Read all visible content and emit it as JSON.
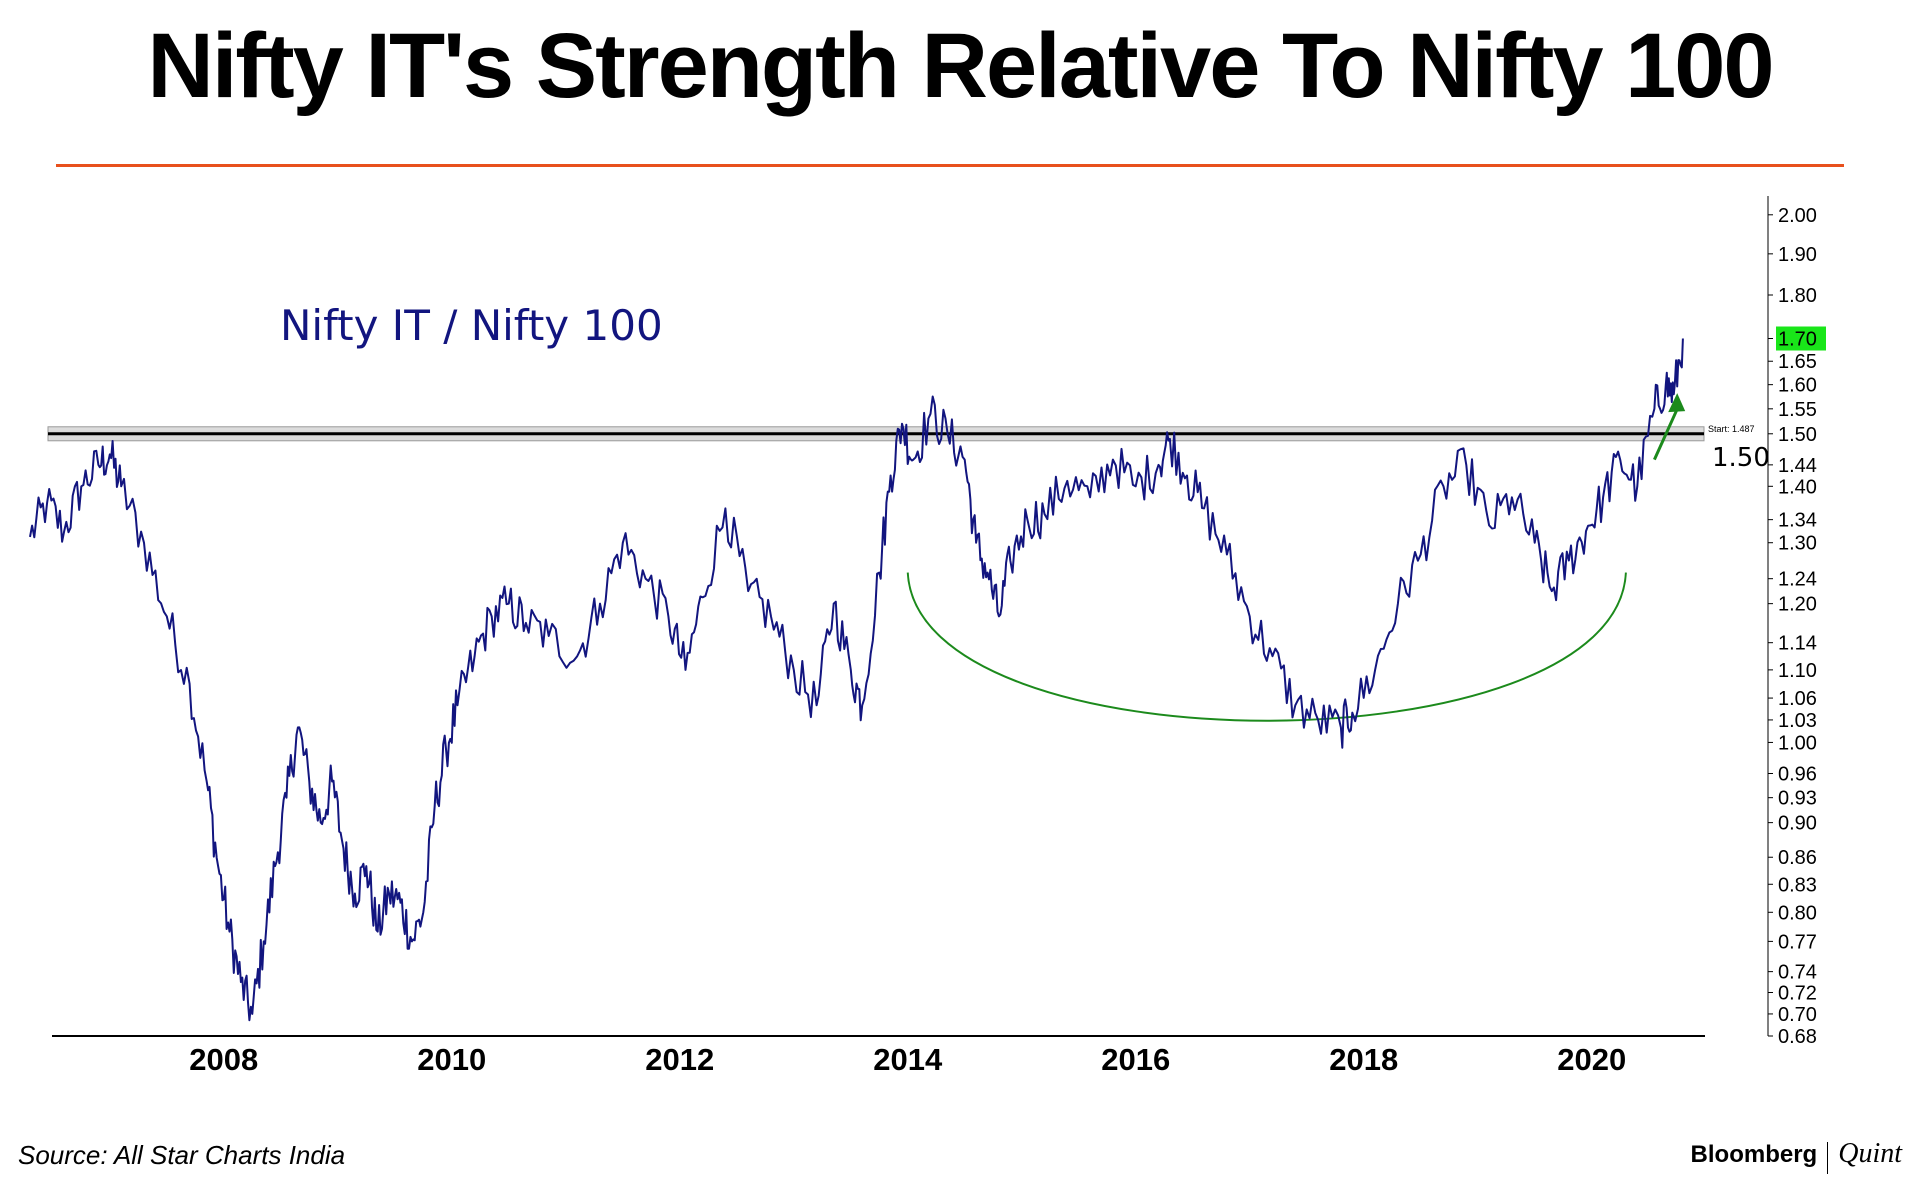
{
  "title": "Nifty IT's Strength Relative To Nifty 100",
  "source": "Source: All Star Charts India",
  "brand": {
    "primary": "Bloomberg",
    "secondary": "Quint"
  },
  "colors": {
    "title_rule": "#e8501c",
    "series": "#12157f",
    "arc": "#1c8a1c",
    "last_badge": "#19e619",
    "resistance": "#000000"
  },
  "chart_data": {
    "type": "line",
    "title": "Nifty IT's Strength Relative To Nifty 100",
    "series_label": "Nifty IT / Nifty 100",
    "scale": "log",
    "ylim": [
      0.68,
      2.05
    ],
    "xlim": [
      2006.3,
      2020.95
    ],
    "x_ticks": [
      2008,
      2010,
      2012,
      2014,
      2016,
      2018,
      2020
    ],
    "x_tick_labels": [
      "2008",
      "2010",
      "2012",
      "2014",
      "2016",
      "2018",
      "2020"
    ],
    "y_ticks": [
      2.0,
      1.9,
      1.8,
      1.7,
      1.65,
      1.6,
      1.55,
      1.5,
      1.44,
      1.4,
      1.34,
      1.3,
      1.24,
      1.2,
      1.14,
      1.1,
      1.06,
      1.03,
      1.0,
      0.96,
      0.93,
      0.9,
      0.86,
      0.83,
      0.8,
      0.77,
      0.74,
      0.72,
      0.7,
      0.68
    ],
    "y_tick_labels": [
      "2.00",
      "1.90",
      "1.80",
      "1.70",
      "1.65",
      "1.60",
      "1.55",
      "1.50",
      "1.44",
      "1.40",
      "1.34",
      "1.30",
      "1.24",
      "1.20",
      "1.14",
      "1.10",
      "1.06",
      "1.03",
      "1.00",
      "0.96",
      "0.93",
      "0.90",
      "0.86",
      "0.83",
      "0.80",
      "0.77",
      "0.74",
      "0.72",
      "0.70",
      "0.68"
    ],
    "last_value": 1.7,
    "last_value_label": "1.70",
    "resistance": {
      "value": 1.5,
      "label": "1.50",
      "start_label": "Start:",
      "start_value": "1.487"
    },
    "annotations": [
      {
        "type": "arc",
        "description": "rounding bottom",
        "from": [
          2014.0,
          1.25
        ],
        "to": [
          2020.3,
          1.25
        ],
        "bottom": [
          2017.2,
          0.99
        ]
      },
      {
        "type": "arrow",
        "description": "breakout",
        "from": [
          2020.55,
          1.45
        ],
        "to": [
          2020.75,
          1.57
        ]
      }
    ],
    "points": [
      [
        2006.3,
        1.31
      ],
      [
        2006.45,
        1.37
      ],
      [
        2006.6,
        1.32
      ],
      [
        2006.75,
        1.4
      ],
      [
        2006.9,
        1.44
      ],
      [
        2007.0,
        1.46
      ],
      [
        2007.1,
        1.4
      ],
      [
        2007.3,
        1.3
      ],
      [
        2007.5,
        1.18
      ],
      [
        2007.7,
        1.08
      ],
      [
        2007.85,
        0.95
      ],
      [
        2007.95,
        0.85
      ],
      [
        2008.05,
        0.78
      ],
      [
        2008.15,
        0.73
      ],
      [
        2008.25,
        0.7
      ],
      [
        2008.35,
        0.77
      ],
      [
        2008.45,
        0.85
      ],
      [
        2008.55,
        0.93
      ],
      [
        2008.65,
        1.02
      ],
      [
        2008.75,
        0.95
      ],
      [
        2008.85,
        0.9
      ],
      [
        2008.95,
        0.95
      ],
      [
        2009.05,
        0.87
      ],
      [
        2009.15,
        0.82
      ],
      [
        2009.25,
        0.85
      ],
      [
        2009.35,
        0.78
      ],
      [
        2009.45,
        0.82
      ],
      [
        2009.55,
        0.81
      ],
      [
        2009.65,
        0.77
      ],
      [
        2009.75,
        0.8
      ],
      [
        2009.85,
        0.92
      ],
      [
        2009.95,
        0.99
      ],
      [
        2010.05,
        1.05
      ],
      [
        2010.2,
        1.12
      ],
      [
        2010.35,
        1.18
      ],
      [
        2010.5,
        1.2
      ],
      [
        2010.65,
        1.17
      ],
      [
        2010.85,
        1.15
      ],
      [
        2011.1,
        1.12
      ],
      [
        2011.3,
        1.2
      ],
      [
        2011.5,
        1.3
      ],
      [
        2011.7,
        1.24
      ],
      [
        2011.9,
        1.18
      ],
      [
        2012.05,
        1.1
      ],
      [
        2012.2,
        1.21
      ],
      [
        2012.4,
        1.36
      ],
      [
        2012.6,
        1.22
      ],
      [
        2012.8,
        1.18
      ],
      [
        2013.0,
        1.1
      ],
      [
        2013.2,
        1.05
      ],
      [
        2013.35,
        1.2
      ],
      [
        2013.5,
        1.1
      ],
      [
        2013.6,
        1.05
      ],
      [
        2013.75,
        1.25
      ],
      [
        2013.85,
        1.42
      ],
      [
        2013.95,
        1.52
      ],
      [
        2014.05,
        1.45
      ],
      [
        2014.2,
        1.54
      ],
      [
        2014.35,
        1.5
      ],
      [
        2014.5,
        1.45
      ],
      [
        2014.6,
        1.3
      ],
      [
        2014.7,
        1.25
      ],
      [
        2014.8,
        1.18
      ],
      [
        2014.9,
        1.27
      ],
      [
        2015.05,
        1.34
      ],
      [
        2015.2,
        1.35
      ],
      [
        2015.4,
        1.41
      ],
      [
        2015.6,
        1.38
      ],
      [
        2015.8,
        1.45
      ],
      [
        2016.0,
        1.4
      ],
      [
        2016.2,
        1.44
      ],
      [
        2016.3,
        1.49
      ],
      [
        2016.45,
        1.42
      ],
      [
        2016.6,
        1.36
      ],
      [
        2016.8,
        1.28
      ],
      [
        2017.0,
        1.18
      ],
      [
        2017.2,
        1.12
      ],
      [
        2017.4,
        1.05
      ],
      [
        2017.6,
        1.03
      ],
      [
        2017.8,
        1.02
      ],
      [
        2017.9,
        1.04
      ],
      [
        2018.1,
        1.1
      ],
      [
        2018.3,
        1.2
      ],
      [
        2018.5,
        1.28
      ],
      [
        2018.7,
        1.4
      ],
      [
        2018.9,
        1.44
      ],
      [
        2019.1,
        1.33
      ],
      [
        2019.3,
        1.38
      ],
      [
        2019.5,
        1.3
      ],
      [
        2019.65,
        1.22
      ],
      [
        2019.8,
        1.27
      ],
      [
        2019.95,
        1.32
      ],
      [
        2020.1,
        1.38
      ],
      [
        2020.25,
        1.45
      ],
      [
        2020.4,
        1.4
      ],
      [
        2020.55,
        1.55
      ],
      [
        2020.65,
        1.6
      ],
      [
        2020.72,
        1.58
      ],
      [
        2020.8,
        1.7
      ]
    ]
  }
}
